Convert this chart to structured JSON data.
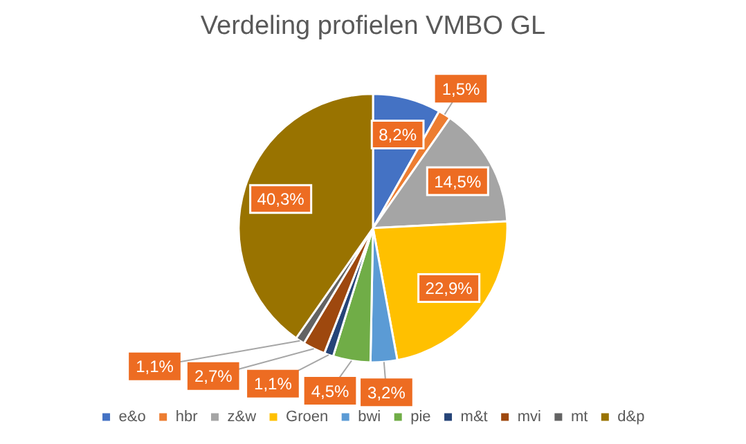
{
  "chart_data": {
    "type": "pie",
    "title": "Verdeling profielen VMBO GL",
    "categories": [
      "e&o",
      "hbr",
      "z&w",
      "Groen",
      "bwi",
      "pie",
      "m&t",
      "mvi",
      "mt",
      "d&p"
    ],
    "values": [
      8.2,
      1.5,
      14.5,
      22.9,
      3.2,
      4.5,
      1.1,
      2.7,
      1.1,
      40.3
    ],
    "colors": [
      "#4472c4",
      "#ed7d31",
      "#a5a5a5",
      "#ffc000",
      "#5b9bd5",
      "#70ad47",
      "#264478",
      "#9e480e",
      "#636363",
      "#997300"
    ],
    "value_labels": [
      "8,2%",
      "1,5%",
      "14,5%",
      "22,9%",
      "3,2%",
      "4,5%",
      "1,1%",
      "2,7%",
      "1,1%",
      "40,3%"
    ],
    "legend": "bottom"
  }
}
